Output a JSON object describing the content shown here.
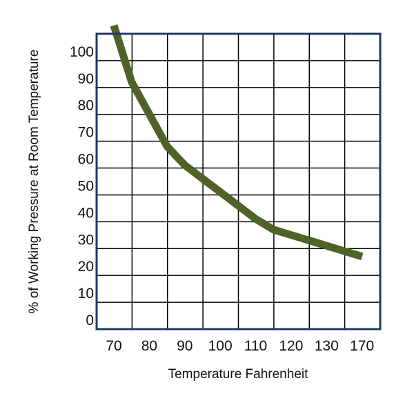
{
  "chart_data": {
    "type": "line",
    "title": "",
    "xlabel": "Temperature Fahrenheit",
    "ylabel": "% of Working Pressure at Room Temperature",
    "x_tick_labels": [
      "70",
      "80",
      "90",
      "100",
      "110",
      "120",
      "130",
      "170"
    ],
    "y_tick_labels": [
      "0",
      "10",
      "20",
      "30",
      "40",
      "50",
      "60",
      "70",
      "80",
      "90",
      "100"
    ],
    "grid": true,
    "series": [
      {
        "color": "#4f6228",
        "x": [
          70,
          75,
          80,
          85,
          90,
          95,
          100,
          105,
          110,
          115,
          120,
          125,
          130,
          135,
          140
        ],
        "y": [
          103,
          82,
          70,
          58,
          51,
          46,
          41,
          36,
          31,
          27,
          25,
          23,
          21,
          19,
          17
        ]
      }
    ],
    "colors": {
      "line": "#4f6228",
      "frame": "#1f3864",
      "grid": "#000000"
    }
  }
}
